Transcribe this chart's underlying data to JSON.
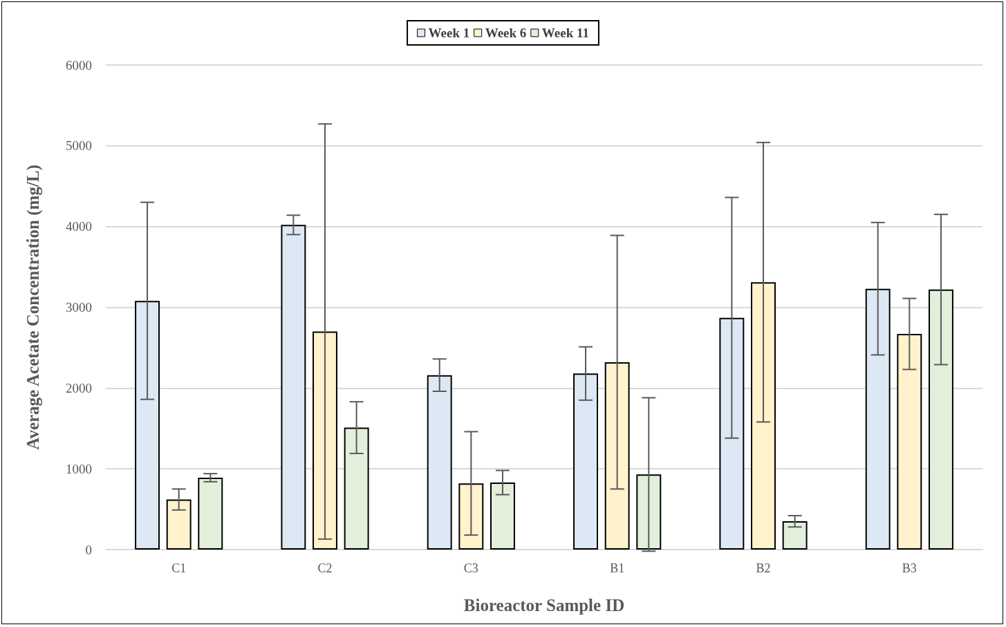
{
  "chart_data": {
    "type": "bar",
    "xlabel": "Bioreactor Sample ID",
    "ylabel": "Average Acetate Concentration (mg/L)",
    "categories": [
      "C1",
      "C2",
      "C3",
      "B1",
      "B2",
      "B3"
    ],
    "series": [
      {
        "name": "Week 1",
        "color": "#dde8f5",
        "values": [
          3080,
          4020,
          2160,
          2180,
          2870,
          3230
        ],
        "errors": [
          1220,
          120,
          200,
          330,
          1490,
          820
        ]
      },
      {
        "name": "Week 6",
        "color": "#fff2cc",
        "values": [
          620,
          2700,
          820,
          2320,
          3310,
          2670
        ],
        "errors": [
          130,
          2570,
          640,
          1570,
          1730,
          440
        ]
      },
      {
        "name": "Week 11",
        "color": "#e2efda",
        "values": [
          890,
          1510,
          830,
          930,
          350,
          3220
        ],
        "errors": [
          50,
          320,
          150,
          950,
          70,
          930
        ]
      }
    ],
    "ylim": [
      0,
      6000
    ],
    "yticks": [
      0,
      1000,
      2000,
      3000,
      4000,
      5000,
      6000
    ],
    "grid": "y",
    "legend": "top"
  }
}
